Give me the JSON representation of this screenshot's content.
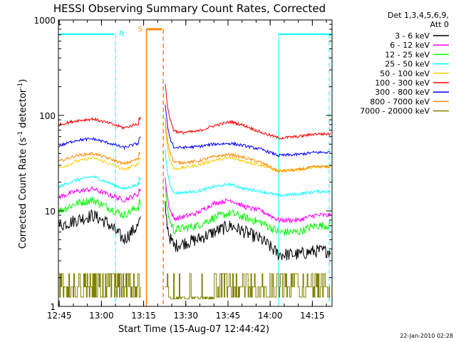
{
  "chart_data": {
    "type": "line",
    "title": "HESSI Observing Summary Count Rates, Corrected",
    "xlabel": "Start Time (15-Aug-07 12:44:42)",
    "ylabel_main": "Corrected Count Rate (s",
    "ylabel_sup1": "-1",
    "ylabel_mid": " detector",
    "ylabel_sup2": "-1",
    "ylabel_end": ")",
    "yscale": "log",
    "xlim": [
      "12:44:42",
      "14:22:00"
    ],
    "ylim": [
      1,
      1000
    ],
    "x_ticks": [
      "12:45",
      "13:00",
      "13:15",
      "13:30",
      "13:45",
      "14:00",
      "14:15"
    ],
    "y_ticks": [
      "1",
      "10",
      "100",
      "1000"
    ],
    "legend_header_1": "Det 1,3,4,5,6,9,",
    "legend_header_2": "Att 0",
    "legend_position": "right",
    "timestamp": "22-Jan-2010 02:28",
    "series": [
      {
        "name": "3 - 6 keV",
        "color": "#000000",
        "values": [
          7,
          8,
          9,
          7.5,
          5,
          7,
          4,
          4.5,
          5,
          6,
          7,
          6,
          5,
          3.5,
          3.5,
          3.8
        ]
      },
      {
        "name": "6 - 12 keV",
        "color": "#ff00ff",
        "values": [
          14,
          16,
          17,
          15,
          13,
          15,
          8,
          8.5,
          9.5,
          12,
          13,
          11,
          10,
          8,
          8,
          9
        ]
      },
      {
        "name": "12 - 25 keV",
        "color": "#00ff00",
        "values": [
          10,
          12,
          13,
          11,
          9,
          11,
          6,
          6.5,
          7,
          8.5,
          9.5,
          8.5,
          7.5,
          6,
          6,
          7
        ]
      },
      {
        "name": "25 - 50 keV",
        "color": "#00ffff",
        "values": [
          18,
          21,
          23,
          20,
          17,
          19,
          15,
          15.5,
          16,
          18,
          19,
          17,
          16,
          14.5,
          15,
          16
        ]
      },
      {
        "name": "50 - 100 keV",
        "color": "#ffcc00",
        "values": [
          28,
          33,
          36,
          32,
          27,
          31,
          27,
          28,
          30,
          34,
          36,
          33,
          30,
          26,
          27,
          29
        ]
      },
      {
        "name": "100 - 300 keV",
        "color": "#ff0000",
        "values": [
          80,
          88,
          92,
          84,
          74,
          82,
          75,
          66,
          68,
          78,
          86,
          78,
          66,
          58,
          60,
          64
        ]
      },
      {
        "name": "300 - 800 keV",
        "color": "#0000ff",
        "values": [
          48,
          55,
          57,
          52,
          46,
          51,
          46,
          46,
          47,
          50,
          51,
          48,
          44,
          38,
          39,
          41
        ]
      },
      {
        "name": "800 - 7000 keV",
        "color": "#ff8800",
        "values": [
          33,
          38,
          40,
          36,
          31,
          35,
          33,
          32,
          33,
          37,
          39,
          36,
          32,
          26,
          27,
          29
        ]
      },
      {
        "name": "7000 - 20000 keV",
        "color": "#808000",
        "values": [
          2.2,
          2.6,
          2.6,
          2.2,
          1.6,
          2,
          1.3,
          1.2,
          1.2,
          1.3,
          2.2,
          1.2,
          1.2,
          1.3,
          1.6,
          1.3
        ]
      }
    ],
    "x": [
      "12:45",
      "12:51",
      "12:57",
      "13:02",
      "13:08",
      "13:13",
      "13:23",
      "13:28",
      "13:34",
      "13:40",
      "13:46",
      "13:51",
      "13:57",
      "14:03",
      "14:10",
      "14:16"
    ],
    "annotations": [
      {
        "label": "N",
        "color": "#00ffff"
      },
      {
        "label": "S",
        "color": "#ff8800"
      }
    ]
  }
}
